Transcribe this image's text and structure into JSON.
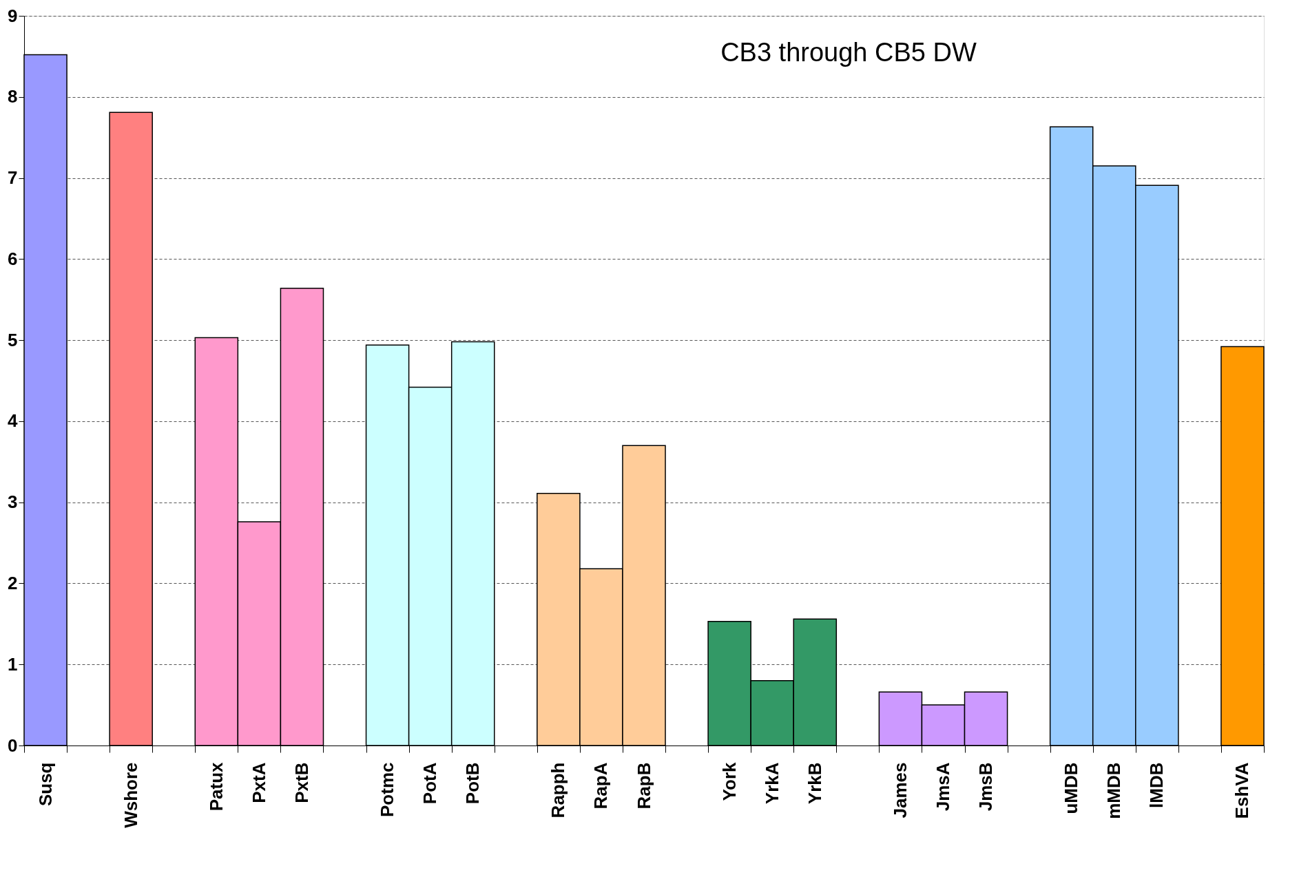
{
  "chart_data": {
    "type": "bar",
    "categories": [
      "Susq",
      null,
      "Wshore",
      null,
      "Patux",
      "PxtA",
      "PxtB",
      null,
      "Potmc",
      "PotA",
      "PotB",
      null,
      "Rapph",
      "RapA",
      "RapB",
      null,
      "York",
      "YrkA",
      "YrkB",
      null,
      "James",
      "JmsA",
      "JmsB",
      null,
      "uMDB",
      "mMDB",
      "lMDB",
      null,
      "EshVA"
    ],
    "values": [
      8.52,
      null,
      7.81,
      null,
      5.03,
      2.76,
      5.64,
      null,
      4.94,
      4.42,
      4.98,
      null,
      3.11,
      2.18,
      3.7,
      null,
      1.53,
      0.8,
      1.56,
      null,
      0.66,
      0.5,
      0.66,
      null,
      7.63,
      7.15,
      6.91,
      null,
      4.92
    ],
    "colors": [
      "#9999ff",
      null,
      "#ff8080",
      null,
      "#ff99cc",
      "#ff99cc",
      "#ff99cc",
      null,
      "#ccffff",
      "#ccffff",
      "#ccffff",
      null,
      "#ffcc99",
      "#ffcc99",
      "#ffcc99",
      null,
      "#339966",
      "#339966",
      "#339966",
      null,
      "#cc99ff",
      "#cc99ff",
      "#cc99ff",
      null,
      "#99ccff",
      "#99ccff",
      "#99ccff",
      null,
      "#ff9900"
    ],
    "annotations": [
      "CB3 through CB5 DW"
    ],
    "ylim": [
      0,
      9
    ],
    "yticks": [
      0,
      1,
      2,
      3,
      4,
      5,
      6,
      7,
      8,
      9
    ],
    "grid": "y"
  }
}
